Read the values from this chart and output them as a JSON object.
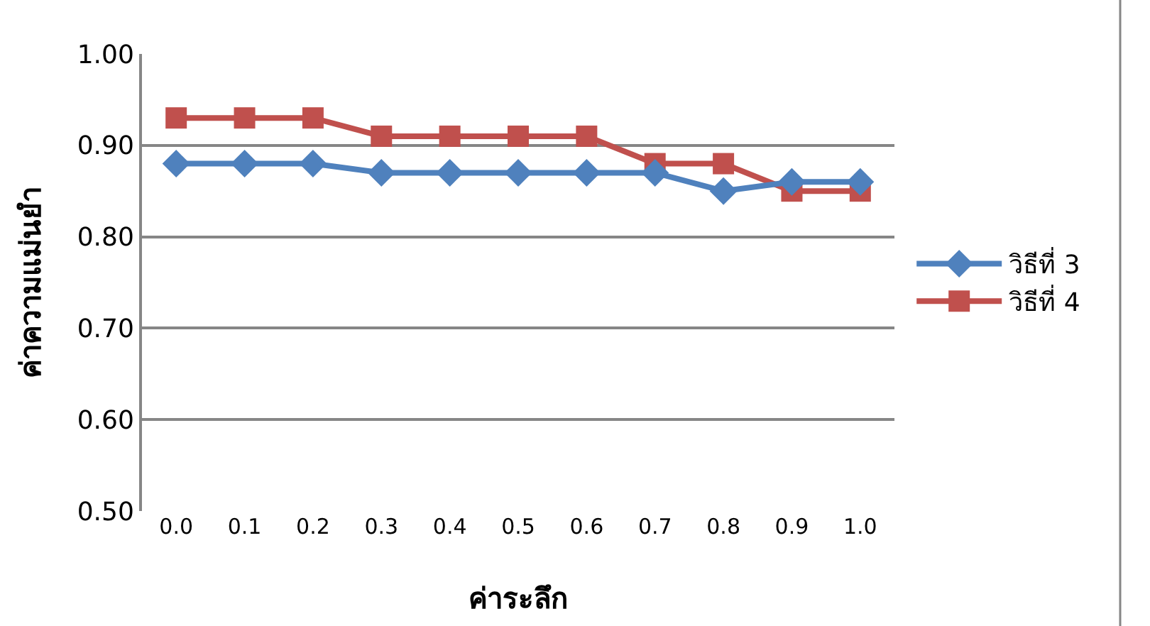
{
  "chart_data": {
    "type": "line",
    "xlabel": "ค่าระลึก",
    "ylabel": "ค่าความแม่นยำ",
    "categories": [
      "0.0",
      "0.1",
      "0.2",
      "0.3",
      "0.4",
      "0.5",
      "0.6",
      "0.7",
      "0.8",
      "0.9",
      "1.0"
    ],
    "series": [
      {
        "name": "วิธีที่ 3",
        "color": "#4f81bd",
        "marker": "diamond",
        "values": [
          0.88,
          0.88,
          0.88,
          0.87,
          0.87,
          0.87,
          0.87,
          0.87,
          0.85,
          0.86,
          0.86
        ]
      },
      {
        "name": "วิธีที่ 4",
        "color": "#c0504d",
        "marker": "square",
        "values": [
          0.93,
          0.93,
          0.93,
          0.91,
          0.91,
          0.91,
          0.91,
          0.88,
          0.88,
          0.85,
          0.85
        ]
      }
    ],
    "ylim": [
      0.5,
      1.0
    ],
    "yticks": [
      {
        "value": 0.5,
        "label": "0.50"
      },
      {
        "value": 0.6,
        "label": "0.60"
      },
      {
        "value": 0.7,
        "label": "0.70"
      },
      {
        "value": 0.8,
        "label": "0.80"
      },
      {
        "value": 0.9,
        "label": "0.90"
      },
      {
        "value": 1.0,
        "label": "1.00"
      }
    ],
    "grid": "y",
    "legend": "right"
  }
}
